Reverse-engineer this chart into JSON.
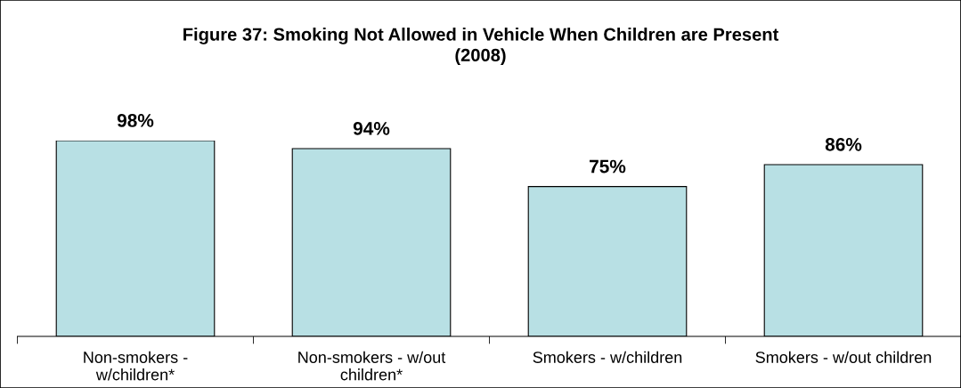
{
  "chart_data": {
    "type": "bar",
    "title": "Figure 37: Smoking Not Allowed in Vehicle When Children are Present\n(2008)",
    "categories": [
      "Non-smokers -\nw/children*",
      "Non-smokers - w/out\nchildren*",
      "Smokers - w/children",
      "Smokers - w/out children"
    ],
    "values": [
      98,
      94,
      75,
      86
    ],
    "value_labels": [
      "98%",
      "94%",
      "75%",
      "86%"
    ],
    "color": "#b8e0e4",
    "grid": false,
    "legend": false,
    "tick_labels": "x"
  }
}
